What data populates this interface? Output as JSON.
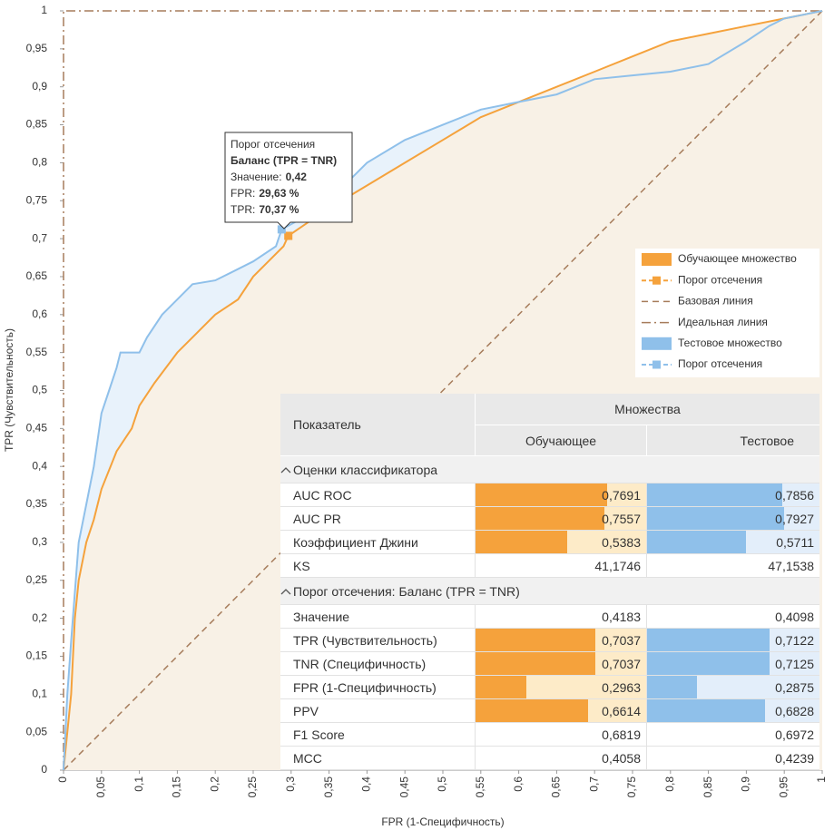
{
  "chart_data": {
    "type": "roc",
    "xlabel": "FPR (1-Специфичность)",
    "ylabel": "TPR (Чувствительность)",
    "xlim": [
      0,
      1
    ],
    "ylim": [
      0,
      1
    ],
    "xticks": [
      0,
      {
        "value": 0.05,
        "label": "0,05"
      },
      {
        "value": 0.1,
        "label": "0,1"
      },
      {
        "value": 0.15,
        "label": "0,15"
      },
      {
        "value": 0.2,
        "label": "0,2"
      },
      {
        "value": 0.25,
        "label": "0,25"
      },
      {
        "value": 0.3,
        "label": "0,3"
      },
      {
        "value": 0.35,
        "label": "0,35"
      },
      {
        "value": 0.4,
        "label": "0,4"
      },
      {
        "value": 0.45,
        "label": "0,45"
      },
      {
        "value": 0.5,
        "label": "0,5"
      },
      {
        "value": 0.55,
        "label": "0,55"
      },
      {
        "value": 0.6,
        "label": "0,6"
      },
      {
        "value": 0.65,
        "label": "0,65"
      },
      {
        "value": 0.7,
        "label": "0,7"
      },
      {
        "value": 0.75,
        "label": "0,75"
      },
      {
        "value": 0.8,
        "label": "0,8"
      },
      {
        "value": 0.85,
        "label": "0,85"
      },
      {
        "value": 0.9,
        "label": "0,9"
      },
      {
        "value": 0.95,
        "label": "0,95"
      },
      1
    ],
    "yticks": [
      0,
      {
        "value": 0.05,
        "label": "0,05"
      },
      {
        "value": 0.1,
        "label": "0,1"
      },
      {
        "value": 0.15,
        "label": "0,15"
      },
      {
        "value": 0.2,
        "label": "0,2"
      },
      {
        "value": 0.25,
        "label": "0,25"
      },
      {
        "value": 0.3,
        "label": "0,3"
      },
      {
        "value": 0.35,
        "label": "0,35"
      },
      {
        "value": 0.4,
        "label": "0,4"
      },
      {
        "value": 0.45,
        "label": "0,45"
      },
      {
        "value": 0.5,
        "label": "0,5"
      },
      {
        "value": 0.55,
        "label": "0,55"
      },
      {
        "value": 0.6,
        "label": "0,6"
      },
      {
        "value": 0.65,
        "label": "0,65"
      },
      {
        "value": 0.7,
        "label": "0,7"
      },
      {
        "value": 0.75,
        "label": "0,75"
      },
      {
        "value": 0.8,
        "label": "0,8"
      },
      {
        "value": 0.85,
        "label": "0,85"
      },
      {
        "value": 0.9,
        "label": "0,9"
      },
      {
        "value": 0.95,
        "label": "0,95"
      },
      1
    ],
    "series": [
      {
        "name": "Обучающее множество",
        "type": "area",
        "color": "#f5a23c",
        "fill": "#f8f1e6",
        "x": [
          0,
          0.005,
          0.01,
          0.015,
          0.02,
          0.03,
          0.04,
          0.05,
          0.07,
          0.09,
          0.1,
          0.12,
          0.15,
          0.17,
          0.2,
          0.23,
          0.25,
          0.27,
          0.29,
          0.2963,
          0.32,
          0.35,
          0.4,
          0.45,
          0.5,
          0.55,
          0.6,
          0.65,
          0.7,
          0.75,
          0.8,
          0.85,
          0.9,
          0.95,
          1
        ],
        "values": [
          0,
          0.05,
          0.1,
          0.2,
          0.25,
          0.3,
          0.33,
          0.37,
          0.42,
          0.45,
          0.48,
          0.51,
          0.55,
          0.57,
          0.6,
          0.62,
          0.65,
          0.67,
          0.69,
          0.7037,
          0.72,
          0.74,
          0.77,
          0.8,
          0.83,
          0.86,
          0.88,
          0.9,
          0.92,
          0.94,
          0.96,
          0.97,
          0.98,
          0.99,
          1
        ]
      },
      {
        "name": "Порог отсечения",
        "type": "point",
        "color": "#f5a23c",
        "x": [
          0.2963
        ],
        "values": [
          0.7037
        ]
      },
      {
        "name": "Базовая линия",
        "type": "line",
        "dash": "dashed",
        "color": "#a67c5b",
        "x": [
          0,
          1
        ],
        "values": [
          0,
          1
        ]
      },
      {
        "name": "Идеальная линия",
        "type": "line",
        "dash": "dashdot",
        "color": "#a67c5b",
        "x": [
          0,
          0,
          1
        ],
        "values": [
          0,
          1,
          1
        ]
      },
      {
        "name": "Тестовое множество",
        "type": "area",
        "color": "#8fc0ea",
        "fill": "#e8f2fb",
        "x": [
          0,
          0.005,
          0.01,
          0.02,
          0.03,
          0.04,
          0.05,
          0.06,
          0.07,
          0.075,
          0.1,
          0.11,
          0.13,
          0.15,
          0.17,
          0.2,
          0.22,
          0.25,
          0.28,
          0.2875,
          0.32,
          0.35,
          0.38,
          0.4,
          0.45,
          0.5,
          0.55,
          0.6,
          0.65,
          0.7,
          0.75,
          0.8,
          0.85,
          0.9,
          0.93,
          0.95,
          1
        ],
        "values": [
          0,
          0.1,
          0.17,
          0.3,
          0.35,
          0.4,
          0.47,
          0.5,
          0.53,
          0.55,
          0.55,
          0.57,
          0.6,
          0.62,
          0.64,
          0.645,
          0.655,
          0.67,
          0.69,
          0.7122,
          0.73,
          0.75,
          0.78,
          0.8,
          0.83,
          0.85,
          0.87,
          0.88,
          0.89,
          0.91,
          0.915,
          0.92,
          0.93,
          0.96,
          0.98,
          0.99,
          1
        ]
      },
      {
        "name": "Порог отсечения",
        "type": "point",
        "color": "#8fc0ea",
        "x": [
          0.2875
        ],
        "values": [
          0.7122
        ]
      }
    ],
    "tooltip": {
      "title": "Порог отсечения",
      "subtitle": "Баланс (TPR = TNR)",
      "lines": [
        {
          "label": "Значение:",
          "value": "0,42"
        },
        {
          "label": "FPR:",
          "value": "29,63 %"
        },
        {
          "label": "TPR:",
          "value": "70,37 %"
        }
      ]
    }
  },
  "table": {
    "header": {
      "metric": "Показатель",
      "group": "Множества",
      "columns": [
        "Обучающее",
        "Тестовое"
      ]
    },
    "bar_lim": [
      0,
      1
    ],
    "bar_colors": [
      "#f5a23c",
      "#8fc0ea"
    ],
    "bar_backgrounds": [
      "#fdebc8",
      "#e3eefa"
    ],
    "sections": [
      {
        "title": "Оценки классификатора",
        "rows": [
          {
            "name": "AUC ROC",
            "values": [
              0.7691,
              0.7856
            ],
            "value_labels": [
              "0,7691",
              "0,7856"
            ],
            "bars": true
          },
          {
            "name": "AUC PR",
            "values": [
              0.7557,
              0.7927
            ],
            "value_labels": [
              "0,7557",
              "0,7927"
            ],
            "bars": true
          },
          {
            "name": "Коэффициент Джини",
            "values": [
              0.5383,
              0.5711
            ],
            "value_labels": [
              "0,5383",
              "0,5711"
            ],
            "bars": true
          },
          {
            "name": "KS",
            "values": [
              41.1746,
              47.1538
            ],
            "value_labels": [
              "41,1746",
              "47,1538"
            ],
            "bars": false
          }
        ]
      },
      {
        "title": "Порог отсечения: Баланс (TPR = TNR)",
        "rows": [
          {
            "name": "Значение",
            "values": [
              0.4183,
              0.4098
            ],
            "value_labels": [
              "0,4183",
              "0,4098"
            ],
            "bars": false
          },
          {
            "name": "TPR (Чувствительность)",
            "values": [
              0.7037,
              0.7122
            ],
            "value_labels": [
              "0,7037",
              "0,7122"
            ],
            "bars": true
          },
          {
            "name": "TNR (Специфичность)",
            "values": [
              0.7037,
              0.7125
            ],
            "value_labels": [
              "0,7037",
              "0,7125"
            ],
            "bars": true
          },
          {
            "name": "FPR (1-Специфичность)",
            "values": [
              0.2963,
              0.2875
            ],
            "value_labels": [
              "0,2963",
              "0,2875"
            ],
            "bars": true
          },
          {
            "name": "PPV",
            "values": [
              0.6614,
              0.6828
            ],
            "value_labels": [
              "0,6614",
              "0,6828"
            ],
            "bars": true
          },
          {
            "name": "F1 Score",
            "values": [
              0.6819,
              0.6972
            ],
            "value_labels": [
              "0,6819",
              "0,6972"
            ],
            "bars": false
          },
          {
            "name": "MCC",
            "values": [
              0.4058,
              0.4239
            ],
            "value_labels": [
              "0,4058",
              "0,4239"
            ],
            "bars": false
          }
        ]
      }
    ]
  }
}
